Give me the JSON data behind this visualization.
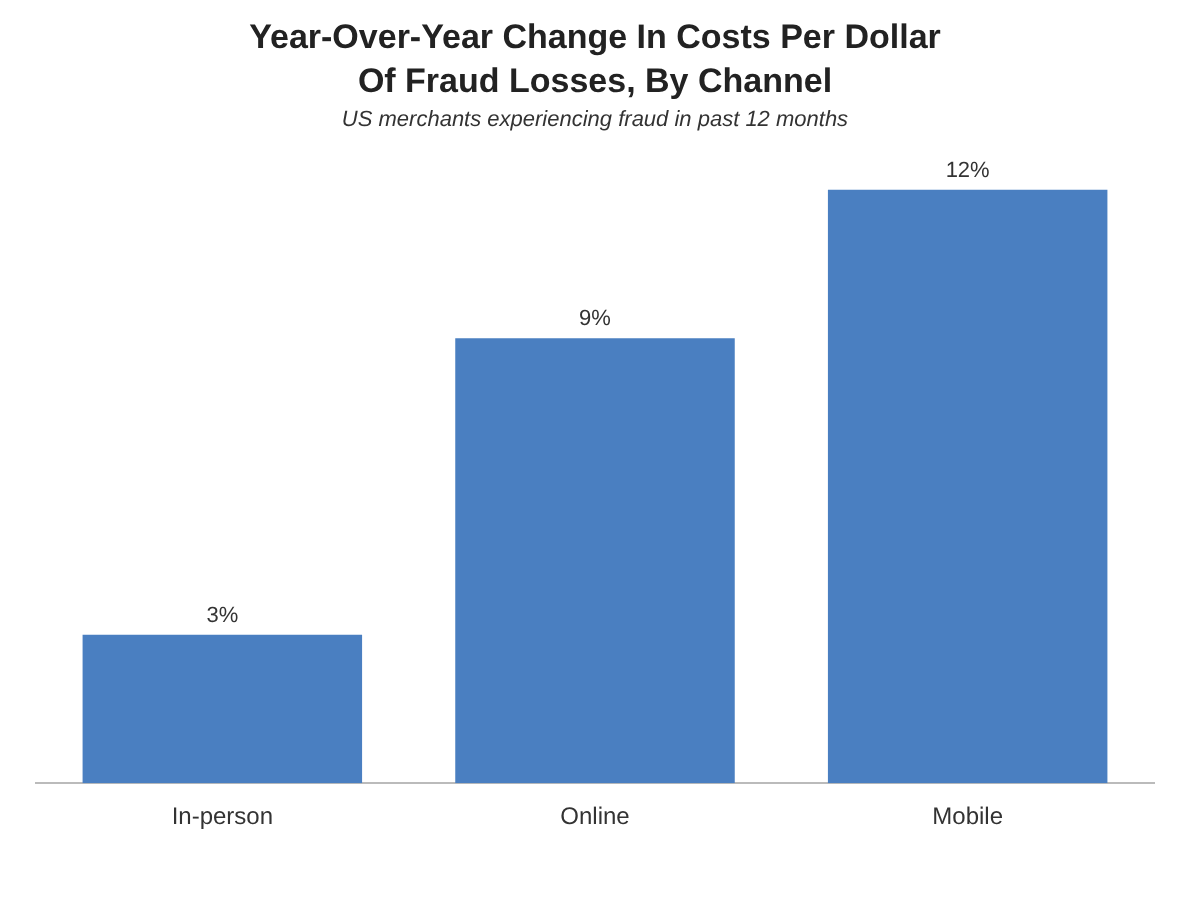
{
  "chart_data": {
    "type": "bar",
    "title": "Year-Over-Year Change In Costs Per Dollar\nOf Fraud Losses, By Channel",
    "subtitle": "US merchants experiencing fraud in past 12 months",
    "categories": [
      "In-person",
      "Online",
      "Mobile"
    ],
    "values": [
      3,
      9,
      12
    ],
    "color": "#4a7fc1",
    "value_labels": [
      "3%",
      "9%",
      "12%"
    ],
    "grid": false,
    "legend": false,
    "tick_labels": "x"
  }
}
